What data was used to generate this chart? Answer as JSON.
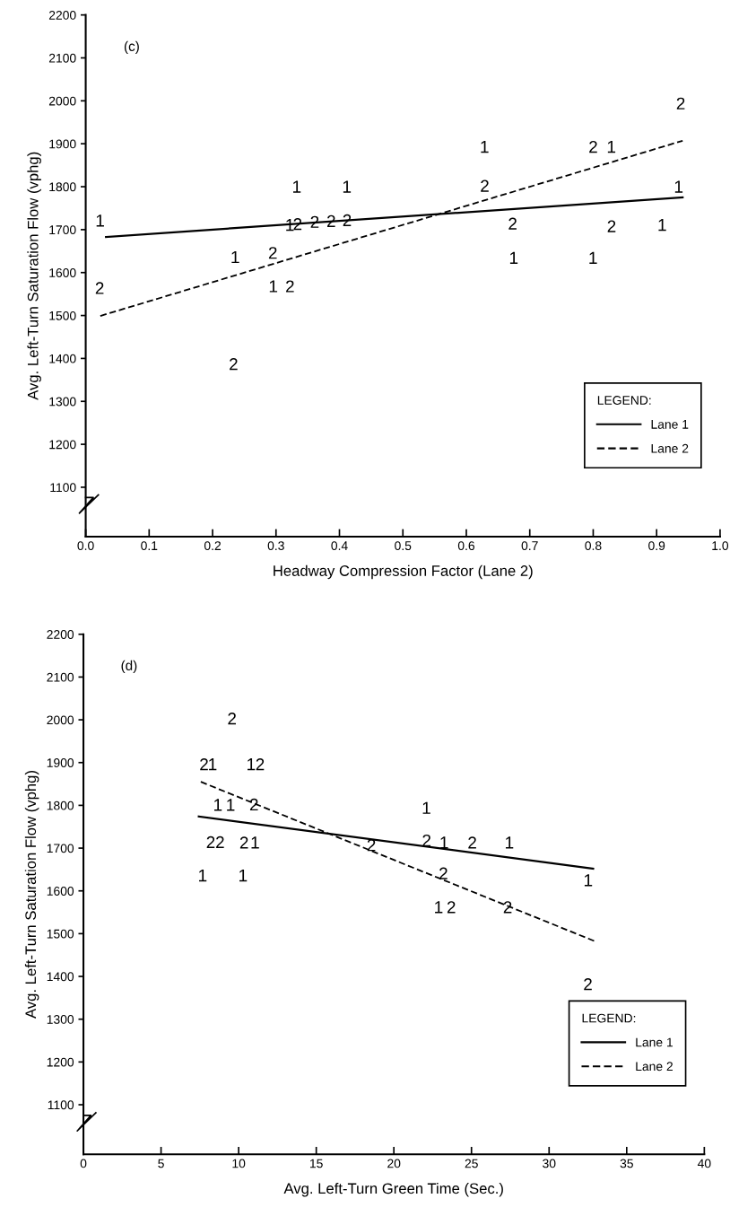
{
  "chart_data": [
    {
      "type": "scatter",
      "xlabel": "Headway Compression Factor (Lane 2)",
      "ylabel": "Avg. Left-Turn Saturation Flow (vphg)",
      "legend_title": "LEGEND:",
      "legend": "bottom right",
      "annotations": [
        "(c)"
      ],
      "xlim": [
        0,
        1.0
      ],
      "xticks": [
        {
          "value": 0,
          "label": "0.0"
        },
        0.1,
        0.2,
        0.3,
        0.4,
        0.5,
        0.6,
        0.7,
        0.8,
        0.9,
        {
          "value": 1.0,
          "label": "1.0"
        }
      ],
      "ylim": [
        985,
        2200
      ],
      "yticks": [
        1100,
        1200,
        1300,
        1400,
        1500,
        1600,
        1700,
        1800,
        1900,
        2000,
        2100,
        2200
      ],
      "series": [
        {
          "name": "Lane 1",
          "color": "#000000",
          "x": [
            0.023,
            0.333,
            0.412,
            0.629,
            0.829,
            0.935,
            0.322,
            0.909,
            0.236,
            0.675,
            0.8,
            0.296
          ],
          "values": [
            1721,
            1800,
            1800,
            1893,
            1893,
            1800,
            1711,
            1711,
            1636,
            1634,
            1634,
            1568
          ]
        },
        {
          "name": "Lane 2",
          "color": "#000000",
          "x": [
            0.938,
            0.8,
            0.629,
            0.334,
            0.361,
            0.387,
            0.412,
            0.673,
            0.829,
            0.295,
            0.022,
            0.322,
            0.233
          ],
          "values": [
            1994,
            1893,
            1802,
            1713,
            1718,
            1720,
            1722,
            1714,
            1708,
            1646,
            1564,
            1568,
            1387
          ]
        },
        {
          "type": "line",
          "color": "#000000",
          "line_style": "solid",
          "x": [
            0.032,
            0.941
          ],
          "values": [
            1683,
            1775
          ]
        },
        {
          "type": "line",
          "color": "#000000",
          "line_style": "dashed",
          "x": [
            0.023,
            0.941
          ],
          "values": [
            1499,
            1907
          ]
        }
      ]
    },
    {
      "type": "scatter",
      "xlabel": "Avg. Left-Turn Green Time (Sec.)",
      "ylabel": "Avg. Left-Turn Saturation Flow (vphg)",
      "legend_title": "LEGEND:",
      "legend": "bottom right",
      "annotations": [
        "(d)"
      ],
      "xlim": [
        0,
        40
      ],
      "xticks": [
        0,
        5,
        10,
        15,
        20,
        25,
        30,
        35,
        40
      ],
      "ylim": [
        984,
        2200
      ],
      "yticks": [
        1100,
        1200,
        1300,
        1400,
        1500,
        1600,
        1700,
        1800,
        1900,
        2000,
        2100,
        2200
      ],
      "series": [
        {
          "name": "Lane 1",
          "color": "#000000",
          "x": [
            8.33,
            10.81,
            8.67,
            9.49,
            22.11,
            11.07,
            23.25,
            27.45,
            7.69,
            10.29,
            32.53,
            22.89
          ],
          "values": [
            1896,
            1896,
            1801,
            1801,
            1794,
            1713,
            1713,
            1713,
            1636,
            1636,
            1625,
            1562
          ]
        },
        {
          "name": "Lane 2",
          "color": "#000000",
          "x": [
            9.57,
            7.77,
            11.38,
            10.99,
            8.2,
            8.8,
            10.35,
            18.55,
            22.11,
            25.05,
            23.19,
            23.7,
            27.33,
            32.5
          ],
          "values": [
            2003,
            1896,
            1896,
            1802,
            1714,
            1714,
            1713,
            1707,
            1718,
            1713,
            1641,
            1562,
            1562,
            1382
          ]
        },
        {
          "type": "line",
          "color": "#000000",
          "line_style": "solid",
          "x": [
            7.43,
            32.84
          ],
          "values": [
            1774,
            1652
          ]
        },
        {
          "type": "line",
          "color": "#000000",
          "line_style": "dashed",
          "x": [
            7.56,
            32.9
          ],
          "values": [
            1855,
            1483
          ]
        }
      ]
    }
  ]
}
